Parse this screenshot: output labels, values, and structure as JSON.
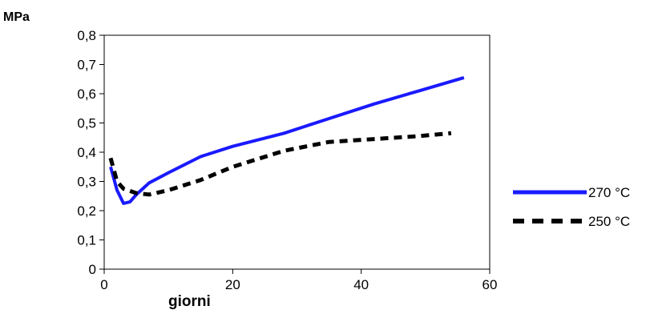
{
  "chart_data": {
    "type": "line",
    "title": "",
    "xlabel": "giorni",
    "ylabel": "MPa",
    "xlim": [
      0,
      60
    ],
    "ylim": [
      0,
      0.8
    ],
    "x_ticks": [
      0,
      20,
      40,
      60
    ],
    "x_tick_labels": [
      "0",
      "20",
      "40",
      "60"
    ],
    "y_ticks": [
      0,
      0.1,
      0.2,
      0.3,
      0.4,
      0.5,
      0.6,
      0.7,
      0.8
    ],
    "y_tick_labels": [
      "0",
      "0,1",
      "0,2",
      "0,3",
      "0,4",
      "0,5",
      "0,6",
      "0,7",
      "0,8"
    ],
    "grid": false,
    "legend_position": "right",
    "series": [
      {
        "name": "270 °C",
        "color": "#1a1aff",
        "style": "solid",
        "x": [
          1,
          2,
          3,
          4,
          5,
          6,
          7,
          10,
          15,
          20,
          28,
          35,
          42,
          49,
          56
        ],
        "y": [
          0.35,
          0.27,
          0.225,
          0.23,
          0.255,
          0.275,
          0.295,
          0.33,
          0.385,
          0.42,
          0.465,
          0.515,
          0.565,
          0.61,
          0.655
        ]
      },
      {
        "name": "250 °C",
        "color": "#000000",
        "style": "dashed",
        "x": [
          1,
          2,
          3,
          5,
          7,
          10,
          15,
          20,
          28,
          35,
          42,
          49,
          54
        ],
        "y": [
          0.38,
          0.3,
          0.275,
          0.26,
          0.255,
          0.27,
          0.305,
          0.35,
          0.405,
          0.435,
          0.445,
          0.455,
          0.465
        ]
      }
    ]
  }
}
